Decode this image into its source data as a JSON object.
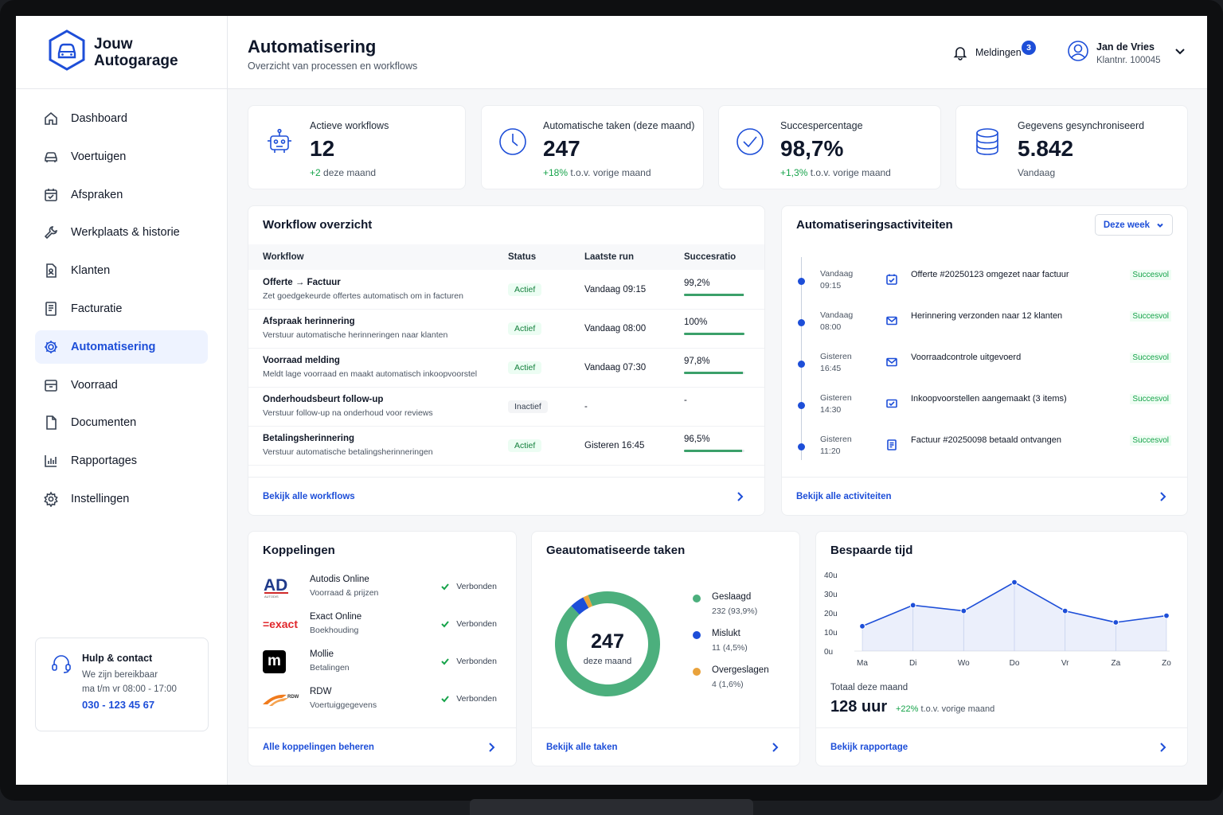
{
  "brand": {
    "name": "Jouw\nAutogarage"
  },
  "sidebar": {
    "items": [
      {
        "label": "Dashboard",
        "icon": "home-icon"
      },
      {
        "label": "Voertuigen",
        "icon": "car-icon"
      },
      {
        "label": "Afspraken",
        "icon": "calendar-icon"
      },
      {
        "label": "Werkplaats & historie",
        "icon": "wrench-icon"
      },
      {
        "label": "Klanten",
        "icon": "customers-icon"
      },
      {
        "label": "Facturatie",
        "icon": "invoice-icon"
      },
      {
        "label": "Automatisering",
        "icon": "gear-icon"
      },
      {
        "label": "Voorraad",
        "icon": "box-icon"
      },
      {
        "label": "Documenten",
        "icon": "document-icon"
      },
      {
        "label": "Rapportages",
        "icon": "report-icon"
      },
      {
        "label": "Instellingen",
        "icon": "settings-icon"
      }
    ],
    "active_index": 6,
    "help": {
      "title": "Hulp & contact",
      "line1": "We zijn bereikbaar",
      "line2": "ma t/m vr 08:00 - 17:00",
      "phone": "030 - 123 45 67"
    }
  },
  "header": {
    "title": "Automatisering",
    "subtitle": "Overzicht van processen en workflows",
    "notifications_label": "Meldingen",
    "notifications_count": "3",
    "user_name": "Jan de Vries",
    "user_number": "Klantnr. 100045"
  },
  "kpis": [
    {
      "label": "Actieve workflows",
      "value": "12",
      "change": "+2",
      "change_text": " deze maand",
      "icon": "robot-icon"
    },
    {
      "label": "Automatische taken (deze maand)",
      "value": "247",
      "change": "+18%",
      "change_text": " t.o.v. vorige maand",
      "icon": "clock-icon"
    },
    {
      "label": "Succespercentage",
      "value": "98,7%",
      "change": "+1,3%",
      "change_text": " t.o.v. vorige maand",
      "icon": "check-circle-icon"
    },
    {
      "label": "Gegevens gesynchroniseerd",
      "value": "5.842",
      "change": "",
      "change_text": "Vandaag",
      "icon": "database-icon"
    }
  ],
  "workflows": {
    "title": "Workflow overzicht",
    "columns": [
      "Workflow",
      "Status",
      "Laatste run",
      "Succesratio"
    ],
    "rows": [
      {
        "name": "Offerte → Factuur",
        "desc": "Zet goedgekeurde offertes automatisch om in facturen",
        "status": "Actief",
        "run": "Vandaag 09:15",
        "rate": "99,2%",
        "rate_value": 99.2
      },
      {
        "name": "Afspraak herinnering",
        "desc": "Verstuur automatische herinneringen naar klanten",
        "status": "Actief",
        "run": "Vandaag 08:00",
        "rate": "100%",
        "rate_value": 100
      },
      {
        "name": "Voorraad melding",
        "desc": "Meldt lage voorraad en maakt automatisch inkoopvoorstel",
        "status": "Actief",
        "run": "Vandaag 07:30",
        "rate": "97,8%",
        "rate_value": 97.8
      },
      {
        "name": "Onderhoudsbeurt follow-up",
        "desc": "Verstuur follow-up na onderhoud voor reviews",
        "status": "Inactief",
        "run": "-",
        "rate": "-",
        "rate_value": null
      },
      {
        "name": "Betalingsherinnering",
        "desc": "Verstuur automatische betalingsherinneringen",
        "status": "Actief",
        "run": "Gisteren 16:45",
        "rate": "96,5%",
        "rate_value": 96.5
      }
    ],
    "footer": "Bekijk alle workflows"
  },
  "activities": {
    "title": "Automatiseringsactiviteiten",
    "filter": "Deze week",
    "items": [
      {
        "when": "Vandaag\n09:15",
        "text": "Offerte #20250123 omgezet naar factuur",
        "status": "Succesvol",
        "icon": "invoice-icon"
      },
      {
        "when": "Vandaag\n08:00",
        "text": "Herinnering verzonden naar 12 klanten",
        "status": "Succesvol",
        "icon": "mail-icon"
      },
      {
        "when": "Gisteren\n16:45",
        "text": "Voorraadcontrole uitgevoerd",
        "status": "Succesvol",
        "icon": "mail-icon"
      },
      {
        "when": "Gisteren\n14:30",
        "text": "Inkoopvoorstellen aangemaakt (3 items)",
        "status": "Succesvol",
        "icon": "mail-check-icon"
      },
      {
        "when": "Gisteren\n11:20",
        "text": "Factuur #20250098 betaald ontvangen",
        "status": "Succesvol",
        "icon": "invoice-icon"
      }
    ],
    "footer": "Bekijk alle activiteiten"
  },
  "integrations": {
    "title": "Koppelingen",
    "items": [
      {
        "name": "Autodis Online",
        "desc": "Voorraad & prijzen",
        "status": "Verbonden",
        "logo": "AD",
        "logo_sub": "AUTODIS"
      },
      {
        "name": "Exact Online",
        "desc": "Boekhouding",
        "status": "Verbonden",
        "logo": "=exact"
      },
      {
        "name": "Mollie",
        "desc": "Betalingen",
        "status": "Verbonden",
        "logo": "m"
      },
      {
        "name": "RDW",
        "desc": "Voertuiggegevens",
        "status": "Verbonden",
        "logo": "RDW"
      }
    ],
    "footer": "Alle koppelingen beheren"
  },
  "tasks": {
    "title": "Geautomatiseerde taken",
    "center_value": "247",
    "center_label": "deze maand",
    "legend": [
      {
        "name": "Geslaagd",
        "value": "232 (93,9%)",
        "color": "#4caf7d"
      },
      {
        "name": "Mislukt",
        "value": "11 (4,5%)",
        "color": "#1d4ed8"
      },
      {
        "name": "Overgeslagen",
        "value": "4 (1,6%)",
        "color": "#e9a23b"
      }
    ],
    "footer": "Bekijk alle taken"
  },
  "time_saved": {
    "title": "Bespaarde tijd",
    "total_label": "Totaal deze maand",
    "total": "128 uur",
    "change": "+22%",
    "change_text": " t.o.v. vorige maand",
    "footer": "Bekijk rapportage"
  },
  "chart_data": [
    {
      "type": "pie",
      "title": "Geautomatiseerde taken",
      "labels": [
        "Geslaagd",
        "Mislukt",
        "Overgeslagen"
      ],
      "values": [
        232,
        11,
        4
      ],
      "colors": [
        "#4caf7d",
        "#1d4ed8",
        "#e9a23b"
      ]
    },
    {
      "type": "area",
      "title": "Bespaarde tijd",
      "categories": [
        "Ma",
        "Di",
        "Wo",
        "Do",
        "Vr",
        "Za",
        "Zo"
      ],
      "values": [
        13,
        24,
        21,
        36,
        21,
        15,
        18.5
      ],
      "yticks": [
        "40u",
        "30u",
        "20u",
        "10u",
        "0u"
      ],
      "ylim": [
        0,
        40
      ],
      "color": "#1d4ed8"
    }
  ]
}
